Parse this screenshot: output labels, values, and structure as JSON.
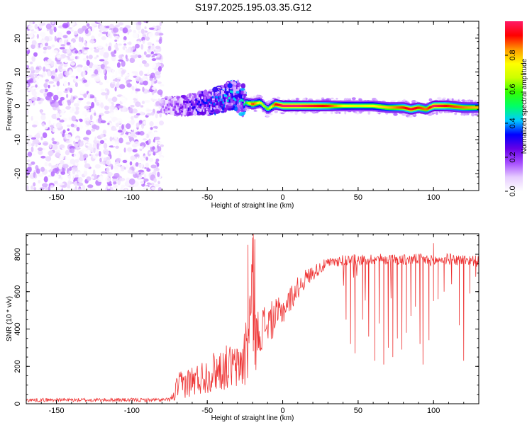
{
  "figure": {
    "title": "S197.2025.195.03.35.G12"
  },
  "chart_data": [
    {
      "type": "heatmap",
      "xlabel": "Height of straight line (km)",
      "ylabel": "Frequency (Hz)",
      "xlim": [
        -170,
        130
      ],
      "ylim": [
        -25,
        25
      ],
      "x_ticks": [
        -150,
        -100,
        -50,
        0,
        50,
        100
      ],
      "y_ticks": [
        -20,
        -10,
        0,
        10,
        20
      ],
      "colorbar": {
        "label": "Normalized spectral amplitude",
        "range": [
          0,
          1
        ],
        "ticks": [
          0.0,
          0.2,
          0.4,
          0.6,
          0.8
        ],
        "colors": [
          "#ffffff",
          "#e6ccff",
          "#a64dff",
          "#6600e6",
          "#0000ff",
          "#00ccff",
          "#00ff66",
          "#33ff00",
          "#ccff00",
          "#ffff00",
          "#ff9900",
          "#ff0000",
          "#ff1a66"
        ]
      },
      "regions": [
        {
          "x_range": [
            -170,
            -80
          ],
          "y_range": [
            -25,
            25
          ],
          "amplitude_range": [
            0.0,
            0.15
          ]
        },
        {
          "x_range": [
            -80,
            -25
          ],
          "y_range": [
            -6,
            6
          ],
          "amplitude_range": [
            0.1,
            0.45
          ]
        },
        {
          "x_range": [
            -25,
            130
          ],
          "y_range": [
            -2,
            2
          ],
          "amplitude_range": [
            0.3,
            1.0
          ]
        }
      ],
      "ridge": {
        "x": [
          -80,
          -70,
          -60,
          -50,
          -40,
          -35,
          -30,
          -25,
          -20,
          -15,
          -10,
          -5,
          0,
          10,
          20,
          30,
          40,
          50,
          60,
          70,
          80,
          85,
          90,
          95,
          100,
          110,
          120,
          130
        ],
        "frequency": [
          0,
          0,
          0.5,
          1,
          2,
          3,
          3,
          1,
          0.5,
          1,
          -1,
          0.5,
          0,
          0,
          0,
          0,
          0,
          0,
          0,
          -0.5,
          -0.5,
          -1,
          -0.5,
          -1,
          0,
          0,
          -0.5,
          -0.5
        ],
        "amplitude": [
          0.15,
          0.2,
          0.3,
          0.35,
          0.4,
          0.45,
          0.4,
          0.5,
          0.9,
          0.7,
          0.6,
          0.9,
          1.0,
          1.0,
          0.95,
          0.9,
          0.75,
          0.7,
          0.75,
          0.8,
          0.9,
          0.95,
          0.9,
          0.85,
          1.0,
          0.9,
          0.85,
          0.8
        ]
      }
    },
    {
      "type": "line",
      "xlabel": "Height of straight line (km)",
      "ylabel": "SNR (10 * v/v)",
      "xlim": [
        -170,
        130
      ],
      "ylim": [
        0,
        910
      ],
      "x_ticks": [
        -150,
        -100,
        -50,
        0,
        50,
        100
      ],
      "y_ticks": [
        0,
        200,
        400,
        600,
        800
      ],
      "color": "#ee3333",
      "envelope": {
        "x": [
          -170,
          -160,
          -150,
          -140,
          -130,
          -120,
          -110,
          -100,
          -90,
          -80,
          -75,
          -72,
          -70,
          -65,
          -60,
          -55,
          -50,
          -45,
          -40,
          -35,
          -30,
          -25,
          -22,
          -20,
          -18,
          -15,
          -10,
          -5,
          0,
          5,
          10,
          15,
          20,
          25,
          30,
          35,
          40,
          45,
          50,
          55,
          60,
          65,
          70,
          75,
          80,
          85,
          90,
          95,
          100,
          105,
          110,
          115,
          120,
          125,
          130
        ],
        "y": [
          20,
          20,
          21,
          20,
          20,
          20,
          21,
          20,
          20,
          20,
          22,
          40,
          90,
          110,
          120,
          135,
          155,
          175,
          190,
          200,
          190,
          250,
          420,
          600,
          330,
          400,
          430,
          460,
          500,
          560,
          620,
          670,
          700,
          730,
          750,
          760,
          770,
          770,
          770,
          770,
          775,
          775,
          770,
          775,
          770,
          770,
          775,
          770,
          765,
          770,
          775,
          770,
          770,
          770,
          760
        ],
        "noise": [
          10,
          10,
          10,
          10,
          10,
          10,
          10,
          10,
          10,
          10,
          10,
          30,
          70,
          80,
          90,
          90,
          100,
          110,
          120,
          120,
          120,
          180,
          350,
          330,
          160,
          130,
          110,
          100,
          80,
          70,
          60,
          50,
          40,
          35,
          30,
          30,
          30,
          30,
          30,
          30,
          30,
          30,
          30,
          30,
          30,
          30,
          30,
          30,
          30,
          30,
          30,
          30,
          30,
          30,
          30
        ]
      },
      "dips": [
        {
          "x": 42,
          "y": 450
        },
        {
          "x": 45,
          "y": 320
        },
        {
          "x": 48,
          "y": 270
        },
        {
          "x": 53,
          "y": 450
        },
        {
          "x": 57,
          "y": 360
        },
        {
          "x": 61,
          "y": 230
        },
        {
          "x": 64,
          "y": 430
        },
        {
          "x": 67,
          "y": 210
        },
        {
          "x": 70,
          "y": 300
        },
        {
          "x": 73,
          "y": 250
        },
        {
          "x": 76,
          "y": 350
        },
        {
          "x": 79,
          "y": 290
        },
        {
          "x": 82,
          "y": 380
        },
        {
          "x": 85,
          "y": 470
        },
        {
          "x": 88,
          "y": 520
        },
        {
          "x": 91,
          "y": 320
        },
        {
          "x": 93,
          "y": 210
        },
        {
          "x": 97,
          "y": 340
        },
        {
          "x": 100,
          "y": 550
        },
        {
          "x": 103,
          "y": 560
        },
        {
          "x": 107,
          "y": 600
        },
        {
          "x": 112,
          "y": 640
        },
        {
          "x": 117,
          "y": 420
        },
        {
          "x": 120,
          "y": 230
        },
        {
          "x": 124,
          "y": 590
        },
        {
          "x": 128,
          "y": 680
        }
      ],
      "spikes": [
        {
          "x": -19.5,
          "y": 910
        },
        {
          "x": -18.5,
          "y": 880
        },
        {
          "x": -23,
          "y": 850
        },
        {
          "x": 100,
          "y": 860
        }
      ]
    }
  ]
}
